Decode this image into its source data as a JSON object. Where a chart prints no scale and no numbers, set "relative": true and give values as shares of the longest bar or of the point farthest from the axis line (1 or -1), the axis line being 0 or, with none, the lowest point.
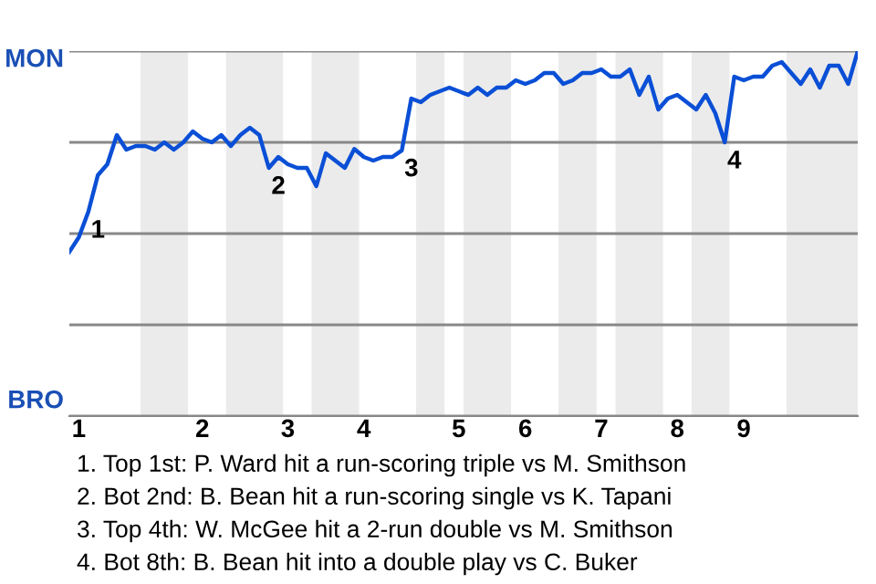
{
  "chart_data": {
    "type": "line",
    "relative": true,
    "categories": [
      null,
      "1",
      null,
      null,
      null,
      null,
      null,
      null,
      null,
      null,
      null,
      null,
      null,
      null,
      "2",
      null,
      null,
      null,
      null,
      null,
      null,
      null,
      null,
      "3",
      null,
      null,
      null,
      null,
      null,
      null,
      null,
      "4",
      null,
      null,
      null,
      null,
      null,
      null,
      null,
      null,
      null,
      "5",
      null,
      null,
      null,
      null,
      null,
      null,
      "6",
      null,
      null,
      null,
      null,
      null,
      null,
      null,
      "7",
      null,
      null,
      null,
      null,
      null,
      null,
      null,
      "8",
      null,
      null,
      null,
      null,
      null,
      null,
      "9",
      null,
      null,
      null,
      null,
      null,
      null,
      null,
      null,
      null,
      null,
      null,
      null
    ],
    "series": [
      {
        "color": "#0a4fd6",
        "values": [
          0.45,
          0.49,
          0.56,
          0.66,
          0.69,
          0.77,
          0.73,
          0.74,
          0.74,
          0.73,
          0.75,
          0.73,
          0.75,
          0.78,
          0.76,
          0.75,
          0.77,
          0.74,
          0.77,
          0.79,
          0.77,
          0.68,
          0.71,
          0.69,
          0.68,
          0.68,
          0.63,
          0.72,
          0.7,
          0.68,
          0.732,
          0.71,
          0.7,
          0.71,
          0.71,
          0.728,
          0.87,
          0.86,
          0.88,
          0.89,
          0.9,
          0.89,
          0.88,
          0.9,
          0.88,
          0.9,
          0.9,
          0.92,
          0.91,
          0.92,
          0.94,
          0.94,
          0.91,
          0.92,
          0.94,
          0.94,
          0.95,
          0.93,
          0.93,
          0.95,
          0.88,
          0.93,
          0.84,
          0.87,
          0.88,
          0.86,
          0.84,
          0.88,
          0.83,
          0.75,
          0.93,
          0.92,
          0.93,
          0.93,
          0.96,
          0.97,
          0.94,
          0.91,
          0.95,
          0.9,
          0.96,
          0.96,
          0.91,
          1.0
        ]
      }
    ],
    "grid": "y",
    "marker": "none",
    "line_style": "solid",
    "annotations": [
      {
        "text": "1",
        "y": 0.56
      },
      {
        "text": "2",
        "y": 0.68
      },
      {
        "text": "3",
        "y": 0.728
      },
      {
        "text": "4",
        "y": 0.75
      },
      "MON",
      "BRO",
      "1. Top 1st: P. Ward hit a run-scoring triple vs M. Smithson",
      "2. Bot 2nd: B. Bean hit a run-scoring single vs K. Tapani",
      "3. Top 4th: W. McGee hit a 2-run double vs M. Smithson",
      "4. Bot 8th: B. Bean hit into a double play vs C. Buker"
    ]
  }
}
